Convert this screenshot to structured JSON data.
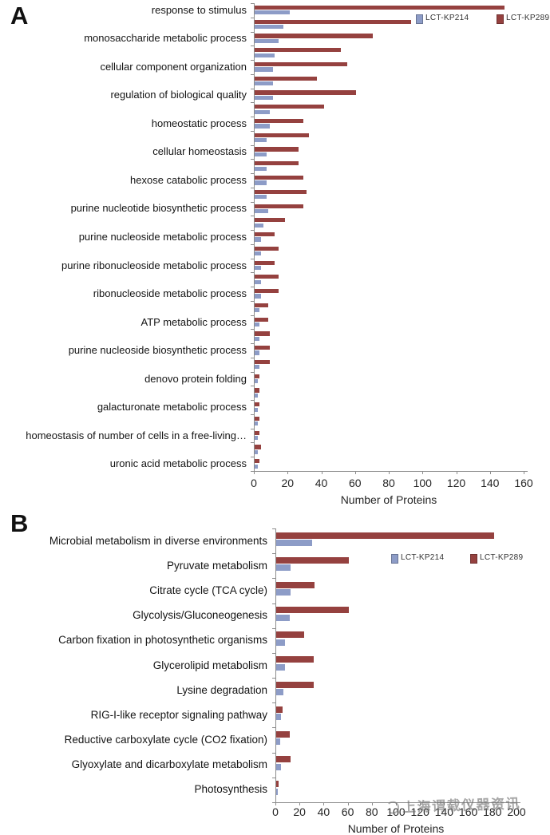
{
  "figure": {
    "panels": [
      {
        "label": "A"
      },
      {
        "label": "B"
      }
    ],
    "watermark": {
      "text": "上海谓载仪器资讯"
    },
    "colors": {
      "lct_kp214": "#8d9cc7",
      "lct_kp289": "#95413f",
      "axis": "#8c8c8c",
      "text": "#262626"
    }
  },
  "chart_data": [
    {
      "type": "bar",
      "orientation": "horizontal",
      "title": "",
      "xlabel": "Number of Proteins",
      "ylabel": "",
      "xlim": [
        0,
        160
      ],
      "xticks": [
        0,
        20,
        40,
        60,
        80,
        100,
        120,
        140,
        160
      ],
      "grid": false,
      "legend_position": "top-right-inside",
      "categories": [
        "response to stimulus",
        "",
        "monosaccharide metabolic process",
        "",
        "cellular component organization",
        "",
        "regulation of biological quality",
        "",
        "homeostatic process",
        "",
        "cellular homeostasis",
        "",
        "hexose catabolic process",
        "",
        "purine nucleotide biosynthetic process",
        "",
        "purine nucleoside metabolic process",
        "",
        "purine ribonucleoside metabolic process",
        "",
        "ribonucleoside metabolic process",
        "",
        "ATP metabolic process",
        "",
        "purine nucleoside biosynthetic process",
        "",
        "denovo protein folding",
        "",
        "galacturonate metabolic process",
        "",
        "homeostasis of number of cells in a free-living…",
        "",
        "uronic acid metabolic process"
      ],
      "series": [
        {
          "name": "LCT-KP214",
          "color": "#8d9cc7",
          "values": [
            21,
            17,
            14,
            12,
            11,
            11,
            11,
            9,
            9,
            7,
            7,
            7,
            7,
            7,
            8,
            5,
            4,
            4,
            4,
            4,
            4,
            3,
            3,
            3,
            3,
            3,
            2,
            2,
            2,
            2,
            2,
            2,
            2
          ]
        },
        {
          "name": "LCT-KP289",
          "color": "#95413f",
          "values": [
            148,
            93,
            70,
            51,
            55,
            37,
            60,
            41,
            29,
            32,
            26,
            26,
            29,
            31,
            29,
            18,
            12,
            14,
            12,
            14,
            14,
            8,
            8,
            9,
            9,
            9,
            3,
            3,
            3,
            3,
            3,
            4,
            3
          ]
        }
      ]
    },
    {
      "type": "bar",
      "orientation": "horizontal",
      "title": "",
      "xlabel": "Number of Proteins",
      "ylabel": "",
      "xlim": [
        0,
        200
      ],
      "xticks": [
        0,
        20,
        40,
        60,
        80,
        100,
        120,
        140,
        160,
        180,
        200
      ],
      "grid": false,
      "legend_position": "top-right-inside",
      "categories": [
        "Microbial metabolism in diverse environments",
        "Pyruvate metabolism",
        "Citrate cycle (TCA cycle)",
        "Glycolysis/Gluconeogenesis",
        "Carbon fixation in photosynthetic organisms",
        "Glycerolipid metabolism",
        "Lysine degradation",
        "RIG-I-like receptor signaling pathway",
        "Reductive carboxylate cycle (CO2 fixation)",
        "Glyoxylate and dicarboxylate metabolism",
        "Photosynthesis"
      ],
      "series": [
        {
          "name": "LCT-KP214",
          "color": "#8d9cc7",
          "values": [
            30,
            12,
            12,
            11,
            7,
            7,
            6,
            4,
            3,
            4,
            1
          ]
        },
        {
          "name": "LCT-KP289",
          "color": "#95413f",
          "values": [
            181,
            60,
            32,
            60,
            23,
            31,
            31,
            5,
            11,
            12,
            2
          ]
        }
      ]
    }
  ]
}
